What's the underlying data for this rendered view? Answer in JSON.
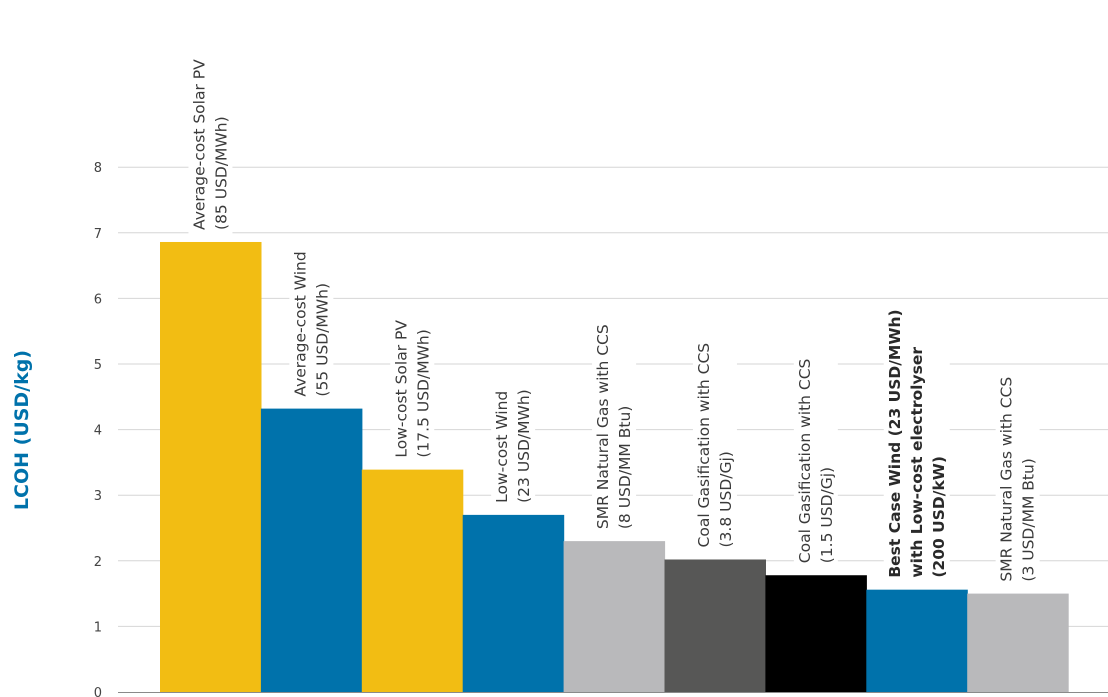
{
  "chart_data": {
    "type": "bar",
    "ylabel": "LCOH (USD/kg)",
    "ylim": [
      0,
      8
    ],
    "yticks": [
      0,
      1,
      2,
      3,
      4,
      5,
      6,
      7,
      8
    ],
    "grid": true,
    "categories": [
      {
        "lines": [
          "Average-cost Solar PV",
          "(85 USD/MWh)"
        ],
        "bold": false
      },
      {
        "lines": [
          "Average-cost Wind",
          "(55 USD/MWh)"
        ],
        "bold": false
      },
      {
        "lines": [
          "Low-cost Solar PV",
          "(17.5 USD/MWh)"
        ],
        "bold": false
      },
      {
        "lines": [
          "Low-cost Wind",
          "(23 USD/MWh)"
        ],
        "bold": false
      },
      {
        "lines": [
          "SMR Natural Gas with CCS",
          "(8 USD/MM Btu)"
        ],
        "bold": false
      },
      {
        "lines": [
          "Coal Gasification with CCS",
          "(3.8 USD/Gj)"
        ],
        "bold": false
      },
      {
        "lines": [
          "Coal Gasification with CCS",
          "(1.5 USD/Gj)"
        ],
        "bold": false
      },
      {
        "lines": [
          "Best Case Wind (23 USD/MWh)",
          "with Low-cost electrolyser",
          "(200 USD/kW)"
        ],
        "bold": true
      },
      {
        "lines": [
          "SMR Natural Gas with CCS",
          "(3 USD/MM Btu)"
        ],
        "bold": false
      }
    ],
    "values": [
      6.86,
      4.32,
      3.39,
      2.7,
      2.3,
      2.02,
      1.78,
      1.56,
      1.5
    ],
    "colors": [
      "#f2bd13",
      "#0072ab",
      "#f2bd13",
      "#0072ab",
      "#b9b9bb",
      "#575756",
      "#000000",
      "#0072ab",
      "#b9b9bb"
    ]
  }
}
